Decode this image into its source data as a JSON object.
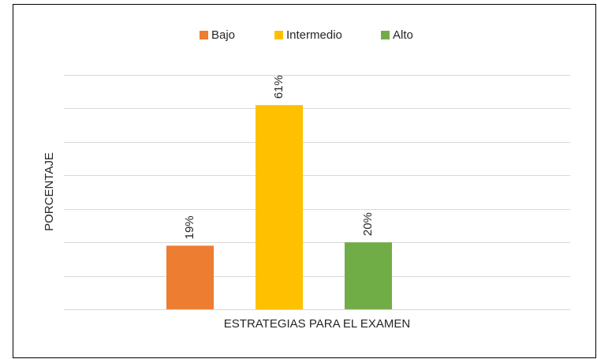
{
  "chart_data": {
    "type": "bar",
    "categories": [
      null
    ],
    "series": [
      {
        "name": "Bajo",
        "color": "#ed7d31",
        "values": [
          19
        ],
        "value_labels": [
          "19%"
        ]
      },
      {
        "name": "Intermedio",
        "color": "#ffc000",
        "values": [
          61
        ],
        "value_labels": [
          "61%"
        ]
      },
      {
        "name": "Alto",
        "color": "#70ad47",
        "values": [
          20
        ],
        "value_labels": [
          "20%"
        ]
      }
    ],
    "y_label": "PORCENTAJE",
    "x_label": "ESTRATEGIAS PARA EL EXAMEN",
    "ylim": [
      0,
      70
    ],
    "yticks": [
      0,
      10,
      20,
      30,
      40,
      50,
      60,
      70
    ],
    "grid": true,
    "legend": "top"
  }
}
